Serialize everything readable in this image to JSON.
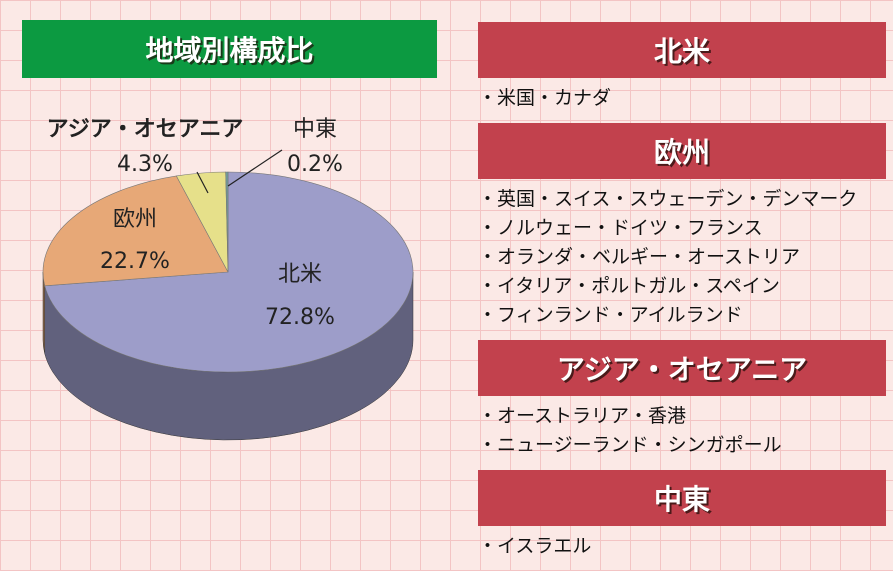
{
  "chart_data": {
    "type": "pie",
    "title": "地域別構成比",
    "categories": [
      "北米",
      "欧州",
      "アジア・オセアニア",
      "中東"
    ],
    "values": [
      72.8,
      22.7,
      4.3,
      0.2
    ],
    "value_labels": [
      "72.8%",
      "22.7%",
      "4.3%",
      "0.2%"
    ],
    "colors": [
      "#9d9dc9",
      "#e7a877",
      "#e6e08a",
      "#6f9c9a"
    ]
  },
  "regions": [
    {
      "name": "北米",
      "items": [
        "・米国・カナダ"
      ]
    },
    {
      "name": "欧州",
      "items": [
        "・英国・スイス・スウェーデン・デンマーク",
        "・ノルウェー・ドイツ・フランス",
        "・オランダ・ベルギー・オーストリア",
        "・イタリア・ポルトガル・スペイン",
        "・フィンランド・アイルランド"
      ]
    },
    {
      "name": "アジア・オセアニア",
      "items": [
        "・オーストラリア・香港",
        "・ニュージーランド・シンガポール"
      ]
    },
    {
      "name": "中東",
      "items": [
        "・イスラエル"
      ]
    }
  ]
}
